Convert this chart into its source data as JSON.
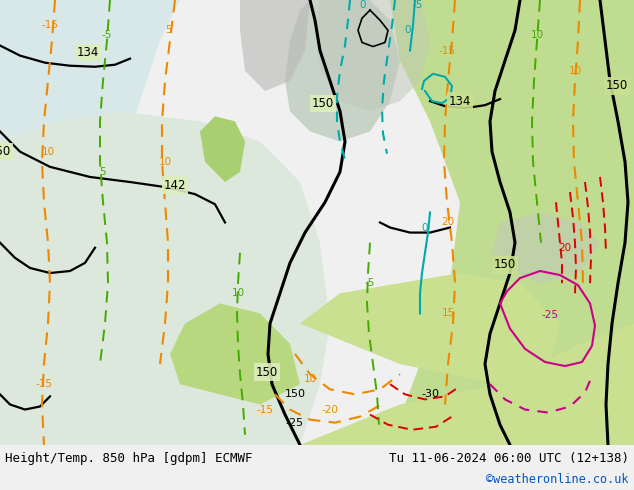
{
  "title_left": "Height/Temp. 850 hPa [gdpm] ECMWF",
  "title_right": "Tu 11-06-2024 06:00 UTC (12+138)",
  "credit": "©weatheronline.co.uk",
  "bg_light_green": "#c8e89a",
  "bg_mid_green": "#b0d878",
  "bg_white_gray": "#e0e0e0",
  "bg_light_gray": "#c8c8c8",
  "bg_ocean": "#e8eef5",
  "bg_white": "#f0f0f0",
  "bottom_bar_color": "#f0f0f0",
  "figsize": [
    6.34,
    4.9
  ],
  "dpi": 100
}
